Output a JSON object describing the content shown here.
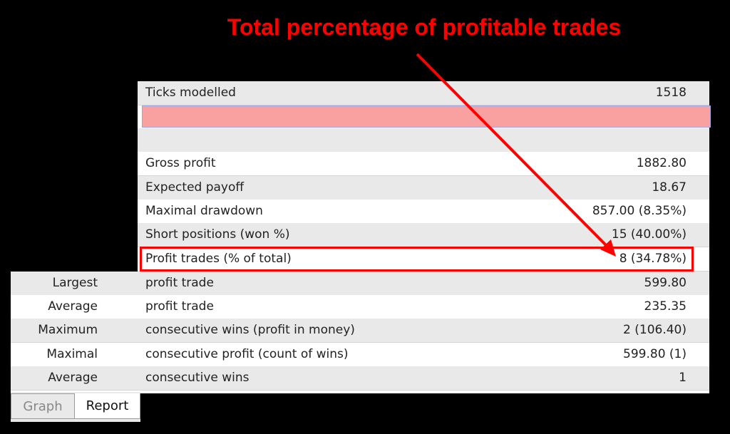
{
  "annotation": {
    "title": "Total percentage of profitable trades",
    "color": "#ff0000"
  },
  "upper_rows": [
    {
      "label": "Ticks modelled",
      "value": "1518"
    },
    {
      "label": "",
      "value": ""
    },
    {
      "label": "",
      "value": ""
    },
    {
      "label": "Gross profit",
      "value": "1882.80"
    },
    {
      "label": "Expected payoff",
      "value": "18.67"
    },
    {
      "label": "Maximal drawdown",
      "value": "857.00 (8.35%)"
    },
    {
      "label": "Short positions (won %)",
      "value": "15 (40.00%)"
    },
    {
      "label": "Profit trades (% of total)",
      "value": "8 (34.78%)"
    }
  ],
  "lower_rows": [
    {
      "prefix": "Largest",
      "label": "profit trade",
      "value": "599.80"
    },
    {
      "prefix": "Average",
      "label": "profit trade",
      "value": "235.35"
    },
    {
      "prefix": "Maximum",
      "label": "consecutive wins (profit in money)",
      "value": "2 (106.40)"
    },
    {
      "prefix": "Maximal",
      "label": "consecutive profit (count of wins)",
      "value": "599.80 (1)"
    },
    {
      "prefix": "Average",
      "label": "consecutive wins",
      "value": "1"
    }
  ],
  "tabs": [
    {
      "label": "Graph"
    },
    {
      "label": "Report"
    }
  ]
}
